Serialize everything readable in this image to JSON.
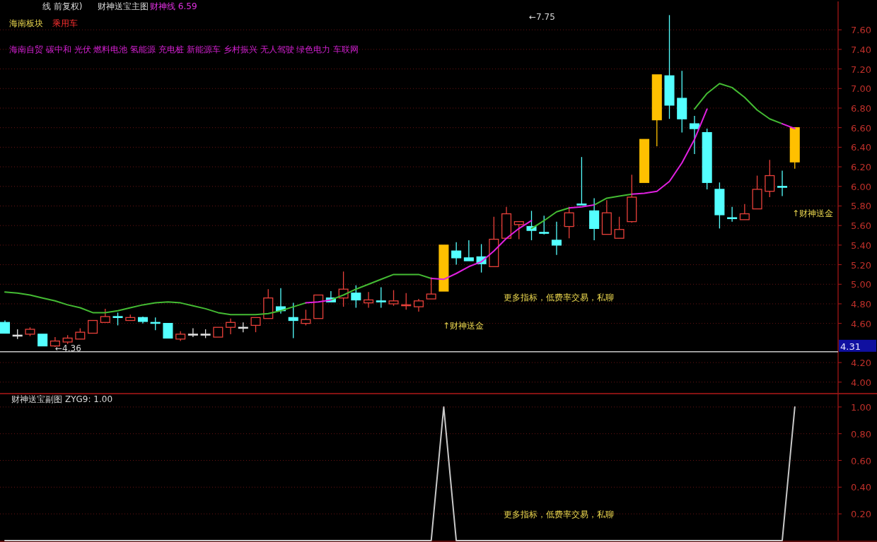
{
  "chart_data": [
    {
      "type": "candlestick",
      "title": "财神送宝主图",
      "annotations": [
        "线 前复权)",
        "财神线 6.59",
        "海南板块",
        "乘用车",
        "海南自贸 碳中和 光伏 燃料电池 氢能源 充电桩 新能源车 乡村振兴 无人驾驶 绿色电力 车联网",
        "←4.36",
        "←7.75",
        "↑财神送金",
        "更多指标，低费率交易，私聊",
        "↑财神送金"
      ],
      "categories": [
        null,
        null,
        null,
        null,
        null,
        null,
        null,
        null,
        null,
        null,
        null,
        null,
        null,
        null,
        null,
        null,
        null,
        null,
        null,
        null,
        null,
        null,
        null,
        null,
        null,
        null,
        null,
        null,
        null,
        null,
        null,
        null,
        null,
        null,
        null,
        null,
        null,
        null,
        null,
        null,
        null,
        null,
        null,
        null,
        null,
        null,
        null,
        null,
        null,
        null,
        null,
        null,
        null,
        null,
        null,
        null,
        null,
        null,
        null,
        null,
        null,
        null,
        null,
        null
      ],
      "ohlc": [
        [
          4.61,
          4.63,
          4.5,
          4.5
        ],
        [
          4.48,
          4.54,
          4.44,
          4.48
        ],
        [
          4.49,
          4.56,
          4.47,
          4.54
        ],
        [
          4.49,
          4.49,
          4.37,
          4.37
        ],
        [
          4.37,
          4.46,
          4.36,
          4.42
        ],
        [
          4.41,
          4.48,
          4.39,
          4.45
        ],
        [
          4.44,
          4.55,
          4.44,
          4.51
        ],
        [
          4.5,
          4.63,
          4.5,
          4.63
        ],
        [
          4.61,
          4.75,
          4.61,
          4.67
        ],
        [
          4.67,
          4.71,
          4.58,
          4.66
        ],
        [
          4.63,
          4.69,
          4.63,
          4.66
        ],
        [
          4.66,
          4.67,
          4.6,
          4.62
        ],
        [
          4.61,
          4.66,
          4.53,
          4.61
        ],
        [
          4.6,
          4.6,
          4.45,
          4.45
        ],
        [
          4.44,
          4.52,
          4.42,
          4.49
        ],
        [
          4.49,
          4.55,
          4.46,
          4.49
        ],
        [
          4.49,
          4.54,
          4.45,
          4.49
        ],
        [
          4.46,
          4.56,
          4.46,
          4.56
        ],
        [
          4.56,
          4.65,
          4.49,
          4.61
        ],
        [
          4.56,
          4.61,
          4.51,
          4.56
        ],
        [
          4.58,
          4.66,
          4.51,
          4.66
        ],
        [
          4.65,
          4.95,
          4.65,
          4.86
        ],
        [
          4.77,
          4.96,
          4.7,
          4.73
        ],
        [
          4.66,
          4.81,
          4.45,
          4.63
        ],
        [
          4.6,
          4.74,
          4.58,
          4.64
        ],
        [
          4.65,
          4.89,
          4.65,
          4.89
        ],
        [
          4.86,
          4.93,
          4.82,
          4.82
        ],
        [
          4.86,
          5.13,
          4.77,
          4.95
        ],
        [
          4.91,
          4.99,
          4.76,
          4.84
        ],
        [
          4.81,
          4.92,
          4.76,
          4.84
        ],
        [
          4.83,
          4.97,
          4.76,
          4.82
        ],
        [
          4.8,
          4.94,
          4.78,
          4.83
        ],
        [
          4.79,
          4.91,
          4.74,
          4.79
        ],
        [
          4.77,
          4.85,
          4.72,
          4.83
        ],
        [
          4.85,
          5.07,
          4.85,
          4.9
        ],
        [
          4.93,
          5.4,
          4.93,
          5.4
        ],
        [
          5.34,
          5.43,
          5.2,
          5.27
        ],
        [
          5.27,
          5.45,
          5.24,
          5.24
        ],
        [
          5.28,
          5.41,
          5.12,
          5.21
        ],
        [
          5.18,
          5.69,
          5.18,
          5.46
        ],
        [
          5.47,
          5.79,
          5.47,
          5.72
        ],
        [
          5.61,
          5.64,
          5.46,
          5.64
        ],
        [
          5.59,
          5.75,
          5.45,
          5.55
        ],
        [
          5.53,
          5.7,
          5.51,
          5.53
        ],
        [
          5.45,
          5.64,
          5.3,
          5.4
        ],
        [
          5.59,
          5.79,
          5.47,
          5.73
        ],
        [
          5.82,
          6.3,
          5.81,
          5.81
        ],
        [
          5.75,
          5.88,
          5.45,
          5.57
        ],
        [
          5.51,
          5.86,
          5.51,
          5.73
        ],
        [
          5.47,
          5.69,
          5.47,
          5.56
        ],
        [
          5.64,
          6.12,
          5.63,
          5.89
        ],
        [
          6.04,
          6.48,
          6.04,
          6.48
        ],
        [
          6.68,
          7.14,
          6.41,
          7.14
        ],
        [
          7.13,
          7.75,
          6.69,
          6.83
        ],
        [
          6.9,
          7.18,
          6.55,
          6.69
        ],
        [
          6.64,
          6.72,
          6.33,
          6.59
        ],
        [
          6.55,
          6.59,
          5.97,
          6.04
        ],
        [
          5.97,
          6.04,
          5.57,
          5.71
        ],
        [
          5.68,
          5.79,
          5.64,
          5.68
        ],
        [
          5.66,
          5.82,
          5.66,
          5.72
        ],
        [
          5.77,
          6.11,
          5.77,
          5.97
        ],
        [
          5.95,
          6.27,
          5.89,
          6.11
        ],
        [
          6.0,
          6.16,
          5.9,
          6.0
        ],
        [
          6.25,
          6.6,
          6.18,
          6.6
        ]
      ],
      "colors": [
        "#54ffff",
        "#e0e0e0",
        "#e8403a",
        "#54ffff",
        "#e8403a",
        "#e8403a",
        "#e8403a",
        "#e8403a",
        "#e8403a",
        "#54ffff",
        "#e8403a",
        "#54ffff",
        "#54ffff",
        "#54ffff",
        "#e8403a",
        "#e0e0e0",
        "#e0e0e0",
        "#e8403a",
        "#e8403a",
        "#e0e0e0",
        "#e8403a",
        "#e8403a",
        "#54ffff",
        "#54ffff",
        "#e8403a",
        "#e8403a",
        "#54ffff",
        "#e8403a",
        "#54ffff",
        "#e8403a",
        "#54ffff",
        "#e8403a",
        "#e8403a",
        "#e8403a",
        "#e8403a",
        "#ffc000",
        "#54ffff",
        "#54ffff",
        "#54ffff",
        "#e8403a",
        "#e8403a",
        "#e8403a",
        "#54ffff",
        "#54ffff",
        "#54ffff",
        "#e8403a",
        "#54ffff",
        "#54ffff",
        "#e8403a",
        "#e8403a",
        "#e8403a",
        "#ffc000",
        "#ffc000",
        "#54ffff",
        "#54ffff",
        "#54ffff",
        "#54ffff",
        "#54ffff",
        "#54ffff",
        "#e8403a",
        "#e8403a",
        "#e8403a",
        "#54ffff",
        "#ffc000"
      ],
      "series": [
        {
          "type": "line",
          "color": "#44bb33",
          "values": [
            4.92,
            4.91,
            4.89,
            4.86,
            4.83,
            4.79,
            4.76,
            4.71,
            4.71,
            4.73,
            4.76,
            4.79,
            4.81,
            4.82,
            4.81,
            4.78,
            4.75,
            4.71,
            4.69,
            4.69,
            4.69,
            4.7,
            4.73,
            4.77,
            4.81,
            null,
            4.84,
            4.89,
            4.95,
            5.0,
            5.05,
            5.1,
            5.1,
            5.1,
            5.06,
            null,
            null,
            null,
            null,
            null,
            null,
            null,
            5.57,
            5.65,
            5.74,
            5.78,
            null,
            5.81,
            5.88,
            5.9,
            5.92,
            null,
            null,
            null,
            null,
            6.79,
            6.95,
            7.05,
            7.01,
            6.91,
            6.78,
            6.69,
            6.64,
            null
          ]
        },
        {
          "type": "line",
          "color": "#e020e0",
          "values": [
            null,
            null,
            null,
            null,
            null,
            null,
            null,
            null,
            null,
            null,
            null,
            null,
            null,
            null,
            null,
            null,
            null,
            null,
            null,
            null,
            null,
            null,
            null,
            null,
            4.81,
            4.82,
            4.84,
            null,
            null,
            null,
            null,
            null,
            null,
            null,
            5.06,
            5.05,
            5.11,
            5.18,
            5.23,
            5.34,
            5.47,
            5.57,
            5.65,
            null,
            null,
            5.78,
            5.79,
            5.81,
            null,
            null,
            5.92,
            5.93,
            5.95,
            6.05,
            6.24,
            6.48,
            6.79,
            null,
            null,
            null,
            null,
            null,
            6.64,
            6.59
          ]
        }
      ],
      "ylim": [
        3.89,
        7.89
      ],
      "yticks": [
        {
          "value": 4,
          "label": "4.00"
        },
        {
          "value": 4.2,
          "label": "4.20"
        },
        {
          "value": 4.6,
          "label": "4.60"
        },
        {
          "value": 4.8,
          "label": "4.80"
        },
        {
          "value": 5,
          "label": "5.00"
        },
        {
          "value": 5.2,
          "label": "5.20"
        },
        {
          "value": 5.4,
          "label": "5.40"
        },
        {
          "value": 5.6,
          "label": "5.60"
        },
        {
          "value": 5.8,
          "label": "5.80"
        },
        {
          "value": 6,
          "label": "6.00"
        },
        {
          "value": 6.2,
          "label": "6.20"
        },
        {
          "value": 6.4,
          "label": "6.40"
        },
        {
          "value": 6.6,
          "label": "6.60"
        },
        {
          "value": 6.8,
          "label": "6.80"
        },
        {
          "value": 7,
          "label": "7.00"
        },
        {
          "value": 7.2,
          "label": "7.20"
        },
        {
          "value": 7.4,
          "label": "7.40"
        },
        {
          "value": 7.6,
          "label": "7.60"
        }
      ],
      "ref_lines": [
        {
          "axis": "y",
          "value": 4.31,
          "label": "4.31",
          "color": "#c8c8c8"
        }
      ],
      "grid": "y",
      "tick_labels": "y"
    },
    {
      "type": "line",
      "title": "财神送宝副图",
      "annotations": [
        "ZYG9: 1.00",
        "更多指标，低费率交易，私聊"
      ],
      "categories": [
        null,
        null,
        null,
        null,
        null,
        null,
        null,
        null,
        null,
        null,
        null,
        null,
        null,
        null,
        null,
        null,
        null,
        null,
        null,
        null,
        null,
        null,
        null,
        null,
        null,
        null,
        null,
        null,
        null,
        null,
        null,
        null,
        null,
        null,
        null,
        null,
        null,
        null,
        null,
        null,
        null,
        null,
        null,
        null,
        null,
        null,
        null,
        null,
        null,
        null,
        null,
        null,
        null,
        null,
        null,
        null,
        null,
        null,
        null,
        null,
        null,
        null,
        null,
        null
      ],
      "series": [
        {
          "color": "#c8c8c8",
          "values": [
            0,
            0,
            0,
            0,
            0,
            0,
            0,
            0,
            0,
            0,
            0,
            0,
            0,
            0,
            0,
            0,
            0,
            0,
            0,
            0,
            0,
            0,
            0,
            0,
            0,
            0,
            0,
            0,
            0,
            0,
            0,
            0,
            0,
            0,
            0,
            1,
            0,
            0,
            0,
            0,
            0,
            0,
            0,
            0,
            0,
            0,
            0,
            0,
            0,
            0,
            0,
            0,
            0,
            0,
            0,
            0,
            0,
            0,
            0,
            0,
            0,
            0,
            0,
            1
          ]
        }
      ],
      "ylim": [
        0,
        1.1
      ],
      "yticks": [
        {
          "value": 0.2,
          "label": "0.20"
        },
        {
          "value": 0.4,
          "label": "0.40"
        },
        {
          "value": 0.6,
          "label": "0.60"
        },
        {
          "value": 0.8,
          "label": "0.80"
        },
        {
          "value": 1,
          "label": "1.00"
        }
      ],
      "grid": "y",
      "tick_labels": "y"
    }
  ]
}
